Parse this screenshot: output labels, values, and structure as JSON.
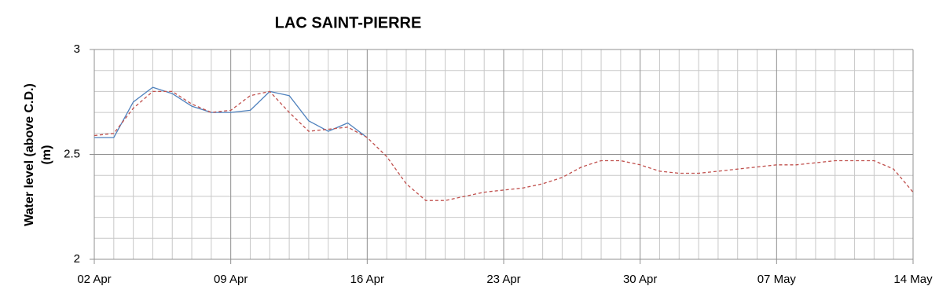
{
  "chart_data": {
    "type": "line",
    "title": "LAC SAINT-PIERRE",
    "y_label": [
      "Water level (above C.D.)",
      "(m)"
    ],
    "x": [
      "02 Apr",
      "03 Apr",
      "04 Apr",
      "05 Apr",
      "06 Apr",
      "07 Apr",
      "08 Apr",
      "09 Apr",
      "10 Apr",
      "11 Apr",
      "12 Apr",
      "13 Apr",
      "14 Apr",
      "15 Apr",
      "16 Apr",
      "17 Apr",
      "18 Apr",
      "19 Apr",
      "20 Apr",
      "21 Apr",
      "22 Apr",
      "23 Apr",
      "24 Apr",
      "25 Apr",
      "26 Apr",
      "27 Apr",
      "28 Apr",
      "29 Apr",
      "30 Apr",
      "01 May",
      "02 May",
      "03 May",
      "04 May",
      "05 May",
      "06 May",
      "07 May",
      "08 May",
      "09 May",
      "10 May",
      "11 May",
      "12 May",
      "13 May",
      "14 May"
    ],
    "xticks": [
      "02 Apr",
      "09 Apr",
      "16 Apr",
      "23 Apr",
      "30 Apr",
      "07 May",
      "14 May"
    ],
    "series": [
      {
        "color": "#4f81bd",
        "dash": false,
        "values": [
          2.58,
          2.58,
          2.75,
          2.82,
          2.79,
          2.73,
          2.7,
          2.7,
          2.71,
          2.8,
          2.78,
          2.66,
          2.61,
          2.65,
          2.58,
          null,
          null,
          null,
          null,
          null,
          null,
          null,
          null,
          null,
          null,
          null,
          null,
          null,
          null,
          null,
          null,
          null,
          null,
          null,
          null,
          null,
          null,
          null,
          null,
          null,
          null,
          null,
          null
        ]
      },
      {
        "color": "#c0504d",
        "dash": true,
        "values": [
          2.59,
          2.6,
          2.72,
          2.8,
          2.8,
          2.74,
          2.7,
          2.71,
          2.78,
          2.8,
          2.7,
          2.61,
          2.62,
          2.63,
          2.58,
          2.49,
          2.36,
          2.28,
          2.28,
          2.3,
          2.32,
          2.33,
          2.34,
          2.36,
          2.39,
          2.44,
          2.47,
          2.47,
          2.45,
          2.42,
          2.41,
          2.41,
          2.42,
          2.43,
          2.44,
          2.45,
          2.45,
          2.46,
          2.47,
          2.47,
          2.47,
          2.43,
          2.32
        ]
      }
    ],
    "ylim": [
      2,
      3
    ],
    "yticks": [
      2,
      2.5,
      3
    ],
    "y_minor_ticks": [
      2.1,
      2.2,
      2.3,
      2.4,
      2.6,
      2.7,
      2.8,
      2.9
    ],
    "grid": true
  }
}
